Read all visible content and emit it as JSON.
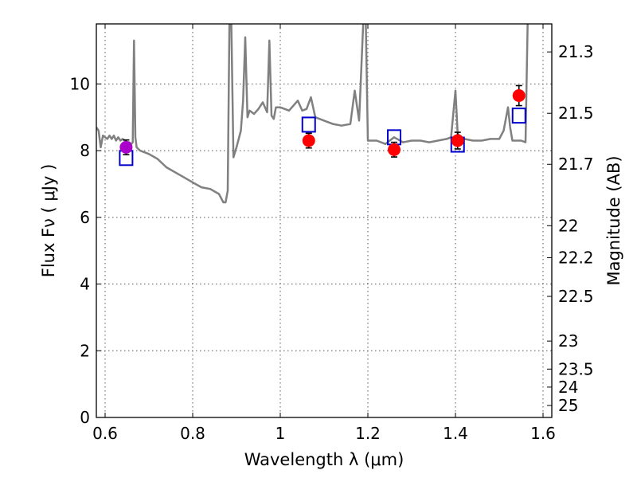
{
  "chart_data": {
    "type": "line",
    "xlabel": "Wavelength  λ (μm)",
    "ylabel": "Flux  Fν  ( μJy )",
    "ylabel_right": "Magnitude (AB)",
    "xlim": [
      0.58,
      1.62
    ],
    "ylim": [
      0,
      11.8
    ],
    "grid": true,
    "x_ticks": [
      {
        "value": 0.6,
        "label": "0.6"
      },
      {
        "value": 0.8,
        "label": "0.8"
      },
      {
        "value": 1.0,
        "label": "1"
      },
      {
        "value": 1.2,
        "label": "1.2"
      },
      {
        "value": 1.4,
        "label": "1.4"
      },
      {
        "value": 1.6,
        "label": "1.6"
      }
    ],
    "y_ticks": [
      {
        "value": 0,
        "label": "0"
      },
      {
        "value": 2,
        "label": "2"
      },
      {
        "value": 4,
        "label": "4"
      },
      {
        "value": 6,
        "label": "6"
      },
      {
        "value": 8,
        "label": "8"
      },
      {
        "value": 10,
        "label": "10"
      }
    ],
    "mag_ticks": [
      {
        "flux": 10.96,
        "label": "21.3"
      },
      {
        "flux": 9.12,
        "label": "21.5"
      },
      {
        "flux": 7.59,
        "label": "21.7"
      },
      {
        "flux": 5.75,
        "label": "22"
      },
      {
        "flux": 4.79,
        "label": "22.2"
      },
      {
        "flux": 3.63,
        "label": "22.5"
      },
      {
        "flux": 2.29,
        "label": "23"
      },
      {
        "flux": 1.45,
        "label": "23.5"
      },
      {
        "flux": 0.91,
        "label": "24"
      },
      {
        "flux": 0.36,
        "label": "25"
      }
    ],
    "series": [
      {
        "kind": "model-spectrum",
        "color": "#808080",
        "points": [
          [
            0.58,
            8.7
          ],
          [
            0.585,
            8.6
          ],
          [
            0.59,
            8.1
          ],
          [
            0.595,
            8.45
          ],
          [
            0.6,
            8.4
          ],
          [
            0.605,
            8.35
          ],
          [
            0.61,
            8.45
          ],
          [
            0.615,
            8.35
          ],
          [
            0.62,
            8.45
          ],
          [
            0.625,
            8.3
          ],
          [
            0.63,
            8.4
          ],
          [
            0.635,
            8.3
          ],
          [
            0.64,
            8.35
          ],
          [
            0.645,
            8.3
          ],
          [
            0.65,
            8.25
          ],
          [
            0.655,
            8.25
          ],
          [
            0.66,
            8.2
          ],
          [
            0.663,
            8.25
          ],
          [
            0.666,
            11.3
          ],
          [
            0.669,
            8.4
          ],
          [
            0.672,
            8.1
          ],
          [
            0.68,
            8.0
          ],
          [
            0.7,
            7.9
          ],
          [
            0.72,
            7.75
          ],
          [
            0.74,
            7.5
          ],
          [
            0.76,
            7.35
          ],
          [
            0.78,
            7.2
          ],
          [
            0.8,
            7.05
          ],
          [
            0.82,
            6.9
          ],
          [
            0.84,
            6.85
          ],
          [
            0.86,
            6.7
          ],
          [
            0.87,
            6.45
          ],
          [
            0.875,
            6.45
          ],
          [
            0.88,
            6.8
          ],
          [
            0.884,
            12.0
          ],
          [
            0.888,
            12.0
          ],
          [
            0.893,
            7.8
          ],
          [
            0.9,
            8.1
          ],
          [
            0.91,
            8.6
          ],
          [
            0.915,
            9.5
          ],
          [
            0.92,
            11.4
          ],
          [
            0.925,
            9.0
          ],
          [
            0.93,
            9.2
          ],
          [
            0.94,
            9.1
          ],
          [
            0.95,
            9.25
          ],
          [
            0.96,
            9.45
          ],
          [
            0.97,
            9.15
          ],
          [
            0.975,
            11.3
          ],
          [
            0.98,
            9.05
          ],
          [
            0.985,
            8.95
          ],
          [
            0.99,
            9.3
          ],
          [
            1.0,
            9.3
          ],
          [
            1.02,
            9.2
          ],
          [
            1.04,
            9.5
          ],
          [
            1.05,
            9.2
          ],
          [
            1.06,
            9.25
          ],
          [
            1.07,
            9.6
          ],
          [
            1.08,
            9.0
          ],
          [
            1.1,
            8.9
          ],
          [
            1.12,
            8.8
          ],
          [
            1.14,
            8.75
          ],
          [
            1.16,
            8.8
          ],
          [
            1.17,
            9.8
          ],
          [
            1.18,
            8.9
          ],
          [
            1.19,
            12.0
          ],
          [
            1.195,
            12.0
          ],
          [
            1.2,
            8.3
          ],
          [
            1.22,
            8.3
          ],
          [
            1.24,
            8.2
          ],
          [
            1.26,
            8.4
          ],
          [
            1.28,
            8.25
          ],
          [
            1.3,
            8.3
          ],
          [
            1.32,
            8.3
          ],
          [
            1.34,
            8.25
          ],
          [
            1.36,
            8.3
          ],
          [
            1.38,
            8.35
          ],
          [
            1.39,
            8.4
          ],
          [
            1.4,
            9.8
          ],
          [
            1.405,
            8.5
          ],
          [
            1.42,
            8.35
          ],
          [
            1.44,
            8.3
          ],
          [
            1.46,
            8.3
          ],
          [
            1.48,
            8.35
          ],
          [
            1.5,
            8.35
          ],
          [
            1.51,
            8.6
          ],
          [
            1.52,
            9.3
          ],
          [
            1.525,
            8.7
          ],
          [
            1.53,
            8.3
          ],
          [
            1.55,
            8.3
          ],
          [
            1.56,
            8.25
          ],
          [
            1.565,
            12.0
          ]
        ]
      },
      {
        "kind": "model-photometry",
        "marker": "open-square",
        "color": "#0000cc",
        "points": [
          [
            0.648,
            7.78
          ],
          [
            1.065,
            8.78
          ],
          [
            1.26,
            8.4
          ],
          [
            1.405,
            8.18
          ],
          [
            1.545,
            9.05
          ]
        ]
      },
      {
        "kind": "observed-photometry",
        "marker": "filled-circle",
        "color": "#ff0000",
        "points": [
          {
            "x": 1.065,
            "y": 8.3,
            "err": 0.22
          },
          {
            "x": 1.26,
            "y": 8.03,
            "err": 0.22
          },
          {
            "x": 1.405,
            "y": 8.3,
            "err": 0.25
          },
          {
            "x": 1.545,
            "y": 9.65,
            "err": 0.3
          }
        ]
      },
      {
        "kind": "observed-photometry-blue",
        "marker": "filled-circle",
        "color": "#aa00cc",
        "points": [
          {
            "x": 0.648,
            "y": 8.1,
            "err": 0.22
          }
        ]
      }
    ]
  }
}
